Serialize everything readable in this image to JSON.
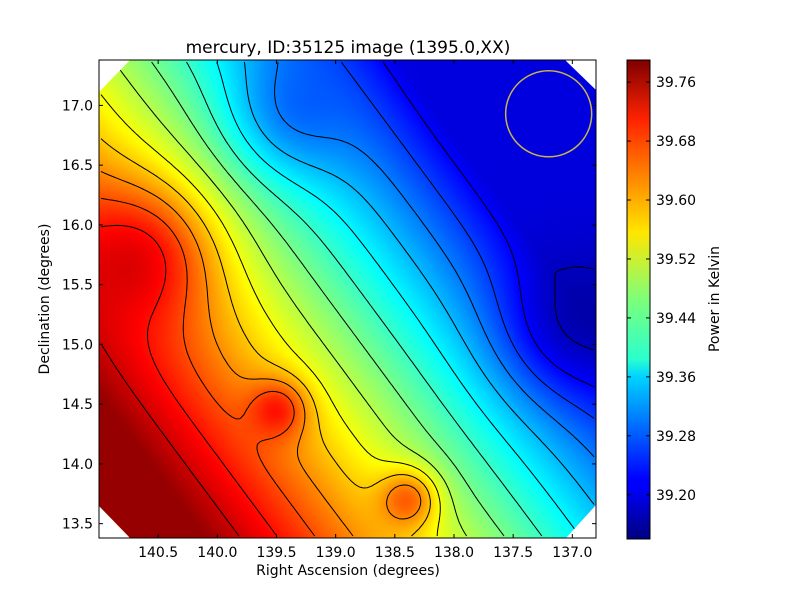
{
  "chart_data": {
    "type": "heatmap",
    "title": "mercury, ID:35125 image (1395.0,XX)",
    "xlabel": "Right Ascension (degrees)",
    "ylabel": "Declination (degrees)",
    "colorbar_label": "Power in Kelvin",
    "xlim": [
      141.0,
      136.8
    ],
    "ylim": [
      13.38,
      17.38
    ],
    "x_ticks": [
      "140.5",
      "140.0",
      "139.5",
      "139.0",
      "138.5",
      "138.0",
      "137.5",
      "137.0"
    ],
    "x_tick_values": [
      140.5,
      140.0,
      139.5,
      139.0,
      138.5,
      138.0,
      137.5,
      137.0
    ],
    "y_ticks": [
      "13.5",
      "14.0",
      "14.5",
      "15.0",
      "15.5",
      "16.0",
      "16.5",
      "17.0"
    ],
    "y_tick_values": [
      13.5,
      14.0,
      14.5,
      15.0,
      15.5,
      16.0,
      16.5,
      17.0
    ],
    "colorbar_ticks": [
      "39.20",
      "39.28",
      "39.36",
      "39.44",
      "39.52",
      "39.60",
      "39.68",
      "39.76"
    ],
    "colorbar_tick_values": [
      39.2,
      39.28,
      39.36,
      39.44,
      39.52,
      39.6,
      39.68,
      39.76
    ],
    "colorbar_range": [
      39.14,
      39.79
    ],
    "colormap": "jet",
    "contour_color": "#000000",
    "circle_annotation": {
      "ra": 137.2,
      "dec": 16.93,
      "radius_deg": 0.36,
      "color": "#c8b44a"
    },
    "peaks": [
      {
        "ra": 140.7,
        "dec": 15.7,
        "value": 39.77,
        "spread": 0.6
      },
      {
        "ra": 139.5,
        "dec": 14.45,
        "value": 39.74,
        "spread": 0.25
      },
      {
        "ra": 138.4,
        "dec": 13.7,
        "value": 39.7,
        "spread": 0.25
      },
      {
        "ra": 139.3,
        "dec": 17.0,
        "value": 39.26,
        "spread": 0.55
      },
      {
        "ra": 136.95,
        "dec": 15.2,
        "value": 39.15,
        "spread": 0.6
      }
    ]
  }
}
